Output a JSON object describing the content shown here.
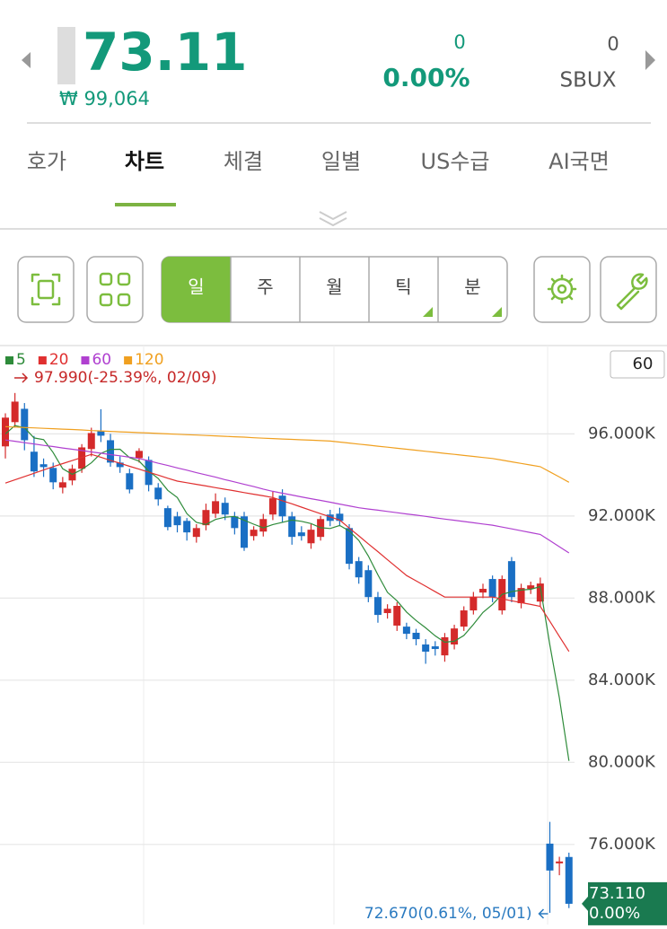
{
  "header": {
    "price": "73.11",
    "krw_price": "₩ 99,064",
    "change": "0",
    "change_rate": "0.00%",
    "volume": "0",
    "symbol": "SBUX"
  },
  "tabs": [
    "호가",
    "차트",
    "체결",
    "일별",
    "US수급",
    "AI국면"
  ],
  "active_tab": 1,
  "periods": [
    "일",
    "주",
    "월",
    "틱",
    "분"
  ],
  "active_period": 0,
  "chart_data": {
    "type": "candlestick",
    "up_color": "#d42a2a",
    "down_color": "#1a6fc4",
    "ylim": [
      72.1,
      100.3
    ],
    "yticks": [
      {
        "value": 96,
        "label": "96.000K"
      },
      {
        "value": 92,
        "label": "92.000K"
      },
      {
        "value": 88,
        "label": "88.000K"
      },
      {
        "value": 84,
        "label": "84.000K"
      },
      {
        "value": 80,
        "label": "80.000K"
      },
      {
        "value": 76,
        "label": "76.000K"
      }
    ],
    "grid": true,
    "count_label": "60",
    "high_annotation": "97.990(-25.39%, 02/09)",
    "low_annotation": "72.670(0.61%, 05/01)",
    "last_price_label": "73.110",
    "last_change_label": "0.00%",
    "open": [
      95.39,
      96.57,
      97.22,
      95.13,
      94.52,
      94.34,
      93.38,
      93.73,
      94.3,
      95.26,
      96.13,
      95.69,
      94.6,
      94.08,
      94.82,
      94.73,
      93.38,
      92.38,
      91.98,
      91.76,
      90.98,
      91.55,
      92.11,
      92.64,
      91.98,
      91.98,
      91.02,
      91.24,
      92.07,
      92.99,
      91.98,
      91.2,
      90.67,
      90.98,
      92.07,
      92.11,
      91.41,
      89.8,
      89.36,
      88.05,
      87.27,
      86.66,
      86.61,
      86.31,
      85.74,
      85.65,
      85.21,
      85.74,
      86.61,
      87.4,
      88.27,
      88.93,
      87.4,
      89.8,
      87.75,
      88.45,
      87.83,
      76.04,
      75.08,
      75.39
    ],
    "high": [
      97.0,
      97.99,
      97.5,
      95.9,
      94.8,
      94.6,
      93.9,
      94.5,
      95.5,
      96.3,
      97.2,
      96.0,
      94.9,
      94.3,
      95.3,
      94.9,
      93.6,
      92.5,
      92.2,
      91.9,
      91.6,
      92.6,
      93.1,
      92.9,
      92.2,
      92.2,
      91.5,
      92.1,
      93.2,
      93.3,
      92.2,
      91.5,
      91.6,
      92.0,
      92.3,
      92.4,
      91.6,
      90.0,
      89.6,
      88.3,
      87.7,
      87.8,
      86.8,
      86.5,
      86.0,
      85.9,
      86.3,
      86.7,
      87.6,
      88.3,
      88.7,
      89.1,
      89.1,
      90.0,
      88.7,
      88.8,
      89.0,
      77.1,
      75.4,
      75.6
    ],
    "low": [
      94.8,
      96.3,
      95.2,
      93.9,
      93.9,
      93.3,
      93.1,
      93.5,
      94.1,
      94.9,
      95.6,
      94.4,
      94.1,
      93.1,
      94.6,
      93.2,
      92.5,
      91.3,
      91.2,
      90.8,
      90.7,
      91.3,
      91.9,
      91.8,
      91.1,
      90.3,
      90.8,
      91.0,
      91.8,
      91.7,
      90.6,
      90.8,
      90.4,
      90.8,
      91.5,
      91.5,
      89.4,
      88.7,
      87.8,
      86.8,
      87.0,
      86.4,
      86.0,
      85.7,
      84.8,
      85.2,
      84.9,
      85.5,
      86.4,
      87.2,
      88.0,
      87.8,
      87.2,
      87.8,
      87.5,
      88.2,
      87.6,
      72.67,
      74.5,
      72.9
    ],
    "close": [
      96.79,
      97.57,
      95.69,
      94.17,
      94.38,
      93.64,
      93.64,
      94.3,
      95.34,
      96.04,
      95.91,
      94.6,
      94.38,
      93.29,
      95.17,
      93.51,
      92.81,
      91.46,
      91.55,
      91.2,
      91.41,
      92.29,
      92.72,
      92.07,
      91.41,
      90.45,
      91.33,
      91.85,
      92.86,
      91.98,
      90.98,
      91.02,
      91.33,
      91.85,
      91.76,
      91.76,
      89.67,
      89.01,
      88.05,
      87.18,
      87.48,
      87.62,
      86.26,
      86.0,
      85.39,
      85.52,
      86.09,
      86.52,
      87.4,
      88.05,
      88.45,
      88.05,
      88.93,
      88.05,
      88.49,
      88.62,
      88.71,
      74.73,
      75.17,
      73.11
    ],
    "moving_averages": [
      {
        "name": "5",
        "color": "#2e8b3a",
        "values": [
          96.0,
          96.4,
          96.3,
          95.8,
          95.72,
          95.09,
          94.3,
          94.03,
          94.26,
          94.59,
          95.05,
          95.24,
          95.25,
          94.84,
          94.67,
          94.19,
          93.83,
          93.25,
          92.9,
          92.11,
          91.69,
          91.58,
          91.83,
          91.94,
          91.98,
          91.79,
          91.6,
          91.42,
          91.58,
          91.69,
          91.8,
          91.74,
          91.63,
          91.43,
          91.39,
          91.54,
          91.27,
          90.81,
          90.05,
          89.13,
          88.28,
          87.87,
          87.32,
          86.91,
          86.55,
          86.16,
          85.85,
          85.9,
          86.18,
          86.72,
          87.3,
          87.69,
          88.18,
          88.31,
          88.39,
          88.43,
          88.56,
          85.72,
          83.14,
          80.07
        ]
      },
      {
        "name": "20",
        "color": "#e03030",
        "values": [
          93.6,
          93.76,
          93.92,
          94.08,
          94.24,
          94.4,
          94.55,
          94.7,
          94.85,
          95.0,
          94.86,
          94.71,
          94.57,
          94.42,
          94.28,
          94.13,
          93.99,
          93.84,
          93.7,
          93.62,
          93.54,
          93.46,
          93.38,
          93.3,
          93.22,
          93.14,
          93.06,
          92.98,
          92.9,
          92.74,
          92.59,
          92.43,
          92.27,
          92.11,
          91.96,
          91.8,
          91.41,
          91.03,
          90.64,
          90.26,
          89.87,
          89.49,
          89.1,
          88.84,
          88.58,
          88.31,
          88.05,
          88.05,
          88.05,
          88.05,
          88.05,
          88.05,
          87.96,
          87.87,
          87.78,
          87.69,
          87.6,
          86.87,
          86.13,
          85.4
        ]
      },
      {
        "name": "60",
        "color": "#b040d0",
        "values": [
          95.7,
          95.64,
          95.57,
          95.51,
          95.44,
          95.38,
          95.31,
          95.25,
          95.19,
          95.12,
          95.06,
          94.99,
          94.93,
          94.86,
          94.8,
          94.69,
          94.57,
          94.46,
          94.34,
          94.23,
          94.11,
          94.0,
          93.89,
          93.77,
          93.66,
          93.54,
          93.43,
          93.31,
          93.2,
          93.11,
          93.02,
          92.93,
          92.84,
          92.76,
          92.67,
          92.58,
          92.49,
          92.4,
          92.34,
          92.28,
          92.22,
          92.16,
          92.1,
          92.04,
          91.98,
          91.91,
          91.85,
          91.79,
          91.73,
          91.67,
          91.61,
          91.55,
          91.46,
          91.37,
          91.28,
          91.19,
          91.1,
          90.8,
          90.5,
          90.2
        ]
      },
      {
        "name": "120",
        "color": "#f0a020",
        "values": [
          96.35,
          96.33,
          96.31,
          96.29,
          96.27,
          96.25,
          96.23,
          96.21,
          96.19,
          96.16,
          96.14,
          96.12,
          96.1,
          96.08,
          96.06,
          96.04,
          96.02,
          96.0,
          95.98,
          95.96,
          95.94,
          95.92,
          95.9,
          95.88,
          95.86,
          95.84,
          95.81,
          95.79,
          95.77,
          95.75,
          95.73,
          95.71,
          95.69,
          95.67,
          95.65,
          95.6,
          95.55,
          95.5,
          95.45,
          95.4,
          95.35,
          95.3,
          95.25,
          95.2,
          95.15,
          95.1,
          95.05,
          95.0,
          94.95,
          94.9,
          94.85,
          94.8,
          94.72,
          94.64,
          94.56,
          94.48,
          94.4,
          94.15,
          93.9,
          93.64
        ]
      }
    ]
  }
}
